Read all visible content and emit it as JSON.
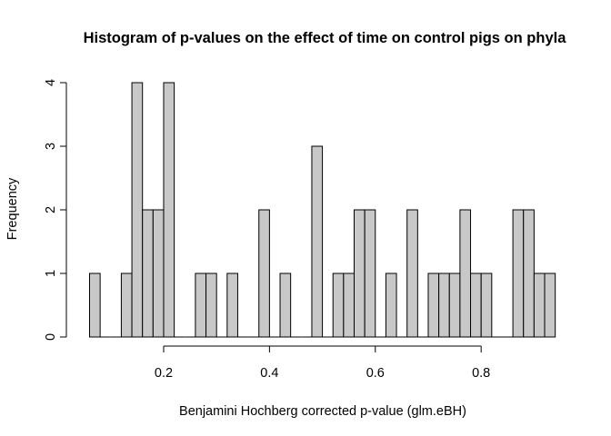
{
  "chart_data": {
    "type": "bar",
    "subtype": "histogram",
    "title": "Histogram of p-values on the effect of time on control pigs on phyla",
    "xlabel": "Benjamini Hochberg corrected p-value (glm.eBH)",
    "ylabel": "Frequency",
    "bin_width": 0.02,
    "xlim": [
      0.06,
      0.94
    ],
    "ylim": [
      0,
      4
    ],
    "xticks": [
      0.2,
      0.4,
      0.6,
      0.8
    ],
    "xtick_labels": [
      "0.2",
      "0.4",
      "0.6",
      "0.8"
    ],
    "yticks": [
      0,
      1,
      2,
      3,
      4
    ],
    "ytick_labels": [
      "0",
      "1",
      "2",
      "3",
      "4"
    ],
    "bin_starts": [
      0.06,
      0.08,
      0.1,
      0.12,
      0.14,
      0.16,
      0.18,
      0.2,
      0.22,
      0.24,
      0.26,
      0.28,
      0.3,
      0.32,
      0.34,
      0.36,
      0.38,
      0.4,
      0.42,
      0.44,
      0.46,
      0.48,
      0.5,
      0.52,
      0.54,
      0.56,
      0.58,
      0.6,
      0.62,
      0.64,
      0.66,
      0.68,
      0.7,
      0.72,
      0.74,
      0.76,
      0.78,
      0.8,
      0.82,
      0.84,
      0.86,
      0.88,
      0.9,
      0.92
    ],
    "values": [
      1,
      0,
      0,
      1,
      4,
      2,
      2,
      4,
      0,
      0,
      1,
      1,
      0,
      1,
      0,
      0,
      2,
      0,
      1,
      0,
      0,
      3,
      0,
      1,
      1,
      2,
      2,
      0,
      1,
      0,
      2,
      0,
      1,
      1,
      1,
      2,
      1,
      1,
      0,
      0,
      2,
      2,
      1,
      1
    ],
    "bar_fill": "#c8c8c8",
    "bar_stroke": "#000000",
    "grid": false,
    "legend": "none"
  }
}
